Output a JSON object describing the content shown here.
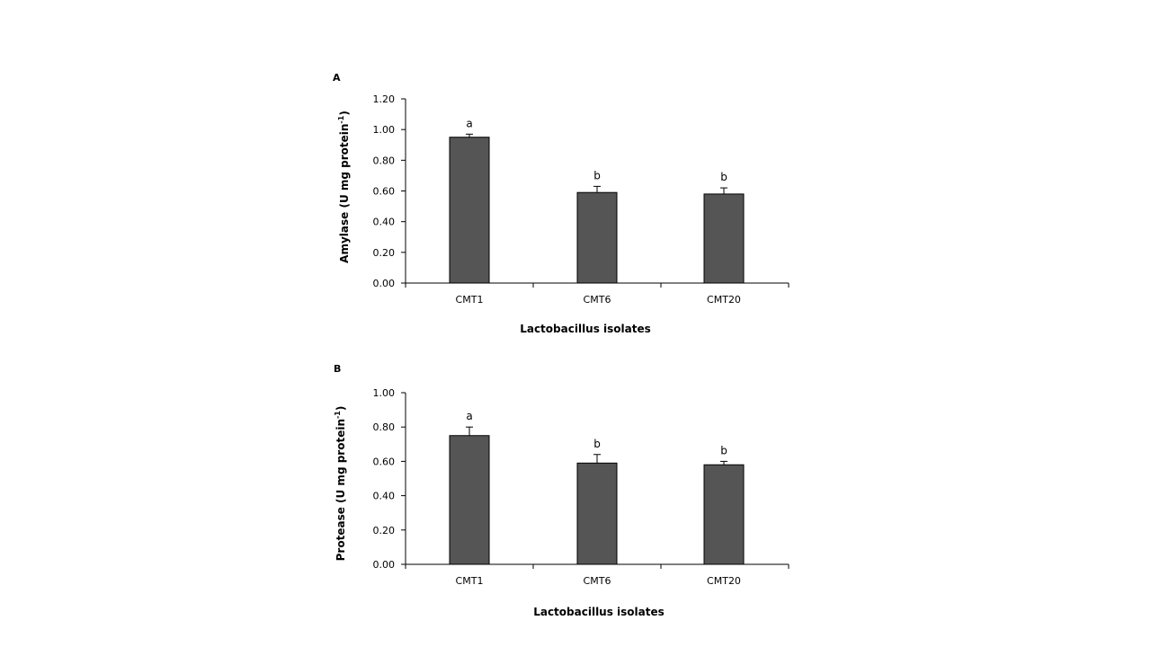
{
  "chart_data": [
    {
      "type": "bar",
      "panel_label": "A",
      "categories": [
        "CMT1",
        "CMT6",
        "CMT20"
      ],
      "values": [
        0.95,
        0.59,
        0.58
      ],
      "errors": [
        0.02,
        0.04,
        0.04
      ],
      "significance": [
        "a",
        "b",
        "b"
      ],
      "xlabel": "Lactobacillus isolates",
      "ylabel": {
        "main": "Amylase (U mg protein",
        "sup": "-1",
        "end": ")"
      },
      "ylim": [
        0,
        1.2
      ],
      "yticks": [
        "0.00",
        "0.20",
        "0.40",
        "0.60",
        "0.80",
        "1.00",
        "1.20"
      ],
      "grid": false,
      "bar_color": "#555555"
    },
    {
      "type": "bar",
      "panel_label": "B",
      "categories": [
        "CMT1",
        "CMT6",
        "CMT20"
      ],
      "values": [
        0.75,
        0.59,
        0.58
      ],
      "errors": [
        0.05,
        0.05,
        0.02
      ],
      "significance": [
        "a",
        "b",
        "b"
      ],
      "xlabel": "Lactobacillus isolates",
      "ylabel": {
        "main": "Protease (U mg protein",
        "sup": "-1",
        "end": ")"
      },
      "ylim": [
        0,
        1.0
      ],
      "yticks": [
        "0.00",
        "0.20",
        "0.40",
        "0.60",
        "0.80",
        "1.00"
      ],
      "grid": false,
      "bar_color": "#555555"
    }
  ]
}
